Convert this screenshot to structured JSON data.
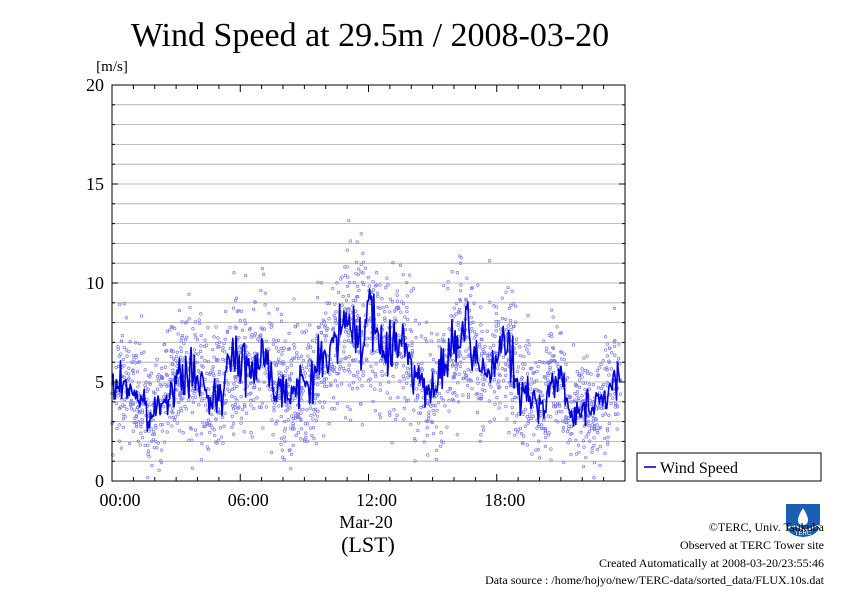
{
  "chart_data": {
    "type": "scatter+line",
    "title": "Wind Speed at 29.5m / 2008-03-20",
    "ylabel": "[m/s]",
    "xlabel": "(LST)",
    "date_label": "Mar-20",
    "ylim": [
      0,
      20
    ],
    "xlim_hours": [
      0,
      24
    ],
    "y_ticks": [
      0,
      5,
      10,
      15,
      20
    ],
    "x_ticks": [
      {
        "hour": 0,
        "label": "00:00"
      },
      {
        "hour": 6,
        "label": "06:00"
      },
      {
        "hour": 12,
        "label": "12:00"
      },
      {
        "hour": 18,
        "label": "18:00"
      }
    ],
    "grid": true,
    "legend": {
      "position": "right",
      "entries": [
        "Wind Speed"
      ]
    },
    "colors": {
      "line": "#0000dd",
      "points": "#7878ee"
    },
    "series": [
      {
        "name": "Wind Speed",
        "x_hours": [
          0.0,
          0.5,
          1.0,
          1.5,
          1.75,
          2.0,
          2.5,
          3.0,
          3.5,
          4.0,
          4.5,
          5.0,
          5.5,
          6.0,
          6.5,
          7.0,
          7.5,
          8.0,
          8.5,
          9.0,
          9.5,
          10.0,
          10.5,
          11.0,
          11.5,
          12.0,
          12.5,
          13.0,
          13.5,
          14.0,
          14.5,
          15.0,
          15.5,
          16.0,
          16.5,
          17.0,
          17.5,
          18.0,
          18.5,
          19.0,
          19.5,
          20.0,
          20.5,
          21.0,
          21.5,
          22.0,
          22.5,
          23.0,
          23.5
        ],
        "y": [
          4.5,
          5.0,
          4.6,
          3.8,
          2.9,
          3.6,
          4.4,
          4.8,
          5.5,
          5.2,
          4.0,
          4.6,
          5.8,
          6.5,
          5.4,
          6.8,
          5.0,
          4.8,
          4.5,
          4.8,
          5.5,
          6.5,
          7.0,
          8.0,
          7.4,
          8.3,
          7.0,
          6.6,
          7.5,
          6.2,
          4.8,
          4.2,
          5.8,
          6.8,
          7.5,
          6.0,
          5.5,
          6.2,
          7.0,
          4.5,
          4.2,
          3.8,
          4.8,
          5.2,
          3.0,
          4.0,
          3.5,
          4.2,
          5.0
        ]
      }
    ]
  },
  "footer": {
    "copyright": "©TERC, Univ. Tsukuba",
    "site": "Observed at TERC Tower site",
    "created": "Created Automatically at 2008-03-20/23:55:46",
    "source": "Data source : /home/hojyo/new/TERC-data/sorted_data/FLUX.10s.dat",
    "logo_text": "TERC"
  }
}
